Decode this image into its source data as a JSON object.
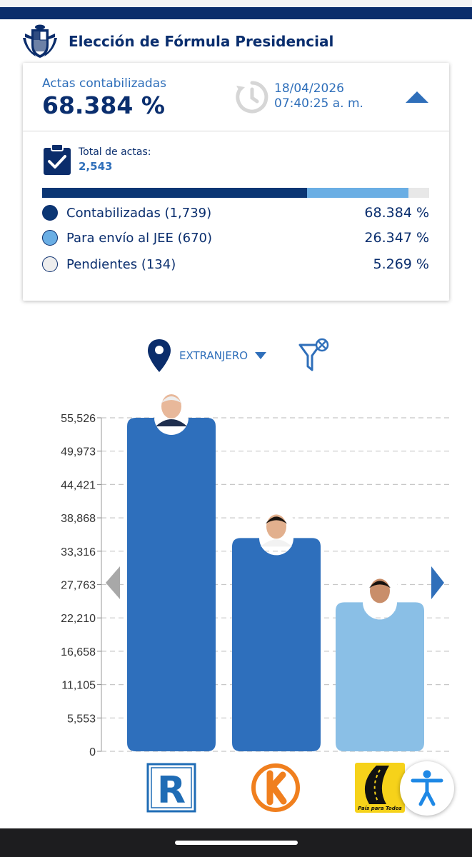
{
  "header": {
    "title": "Elección de Fórmula Presidencial",
    "crest_icon": "peru-coat-of-arms-icon"
  },
  "summary": {
    "actas_label": "Actas contabilizadas",
    "actas_pct": "68.384 %",
    "date": "18/04/2026",
    "time": "07:40:25 a. m.",
    "total_label": "Total de actas:",
    "total_value": "2,543",
    "progress_fractions": [
      0.68384,
      0.26347,
      0.05269
    ],
    "colors": {
      "contabilizadas": "#0b3674",
      "jee": "#6aaee4",
      "pendientes": "#e8e8e8",
      "accent": "#2f6fba"
    },
    "legend": [
      {
        "label": "Contabilizadas (1,739)",
        "pct": "68.384 %",
        "color": "#0b3674"
      },
      {
        "label": "Para envío al JEE (670)",
        "pct": "26.347 %",
        "color": "#6aaee4"
      },
      {
        "label": "Pendientes (134)",
        "pct": "5.269 %",
        "color": "#eeeeee"
      }
    ]
  },
  "filter": {
    "region": "EXTRANJERO"
  },
  "chart_data": {
    "type": "bar",
    "categories": [
      "R",
      "K",
      "País para Todos"
    ],
    "values": [
      55526,
      35500,
      24800
    ],
    "ylim": [
      0,
      55526
    ],
    "yticks": [
      "55,526",
      "49,973",
      "44,421",
      "38,868",
      "33,316",
      "27,763",
      "22,210",
      "16,658",
      "11,105",
      "5,553",
      "0"
    ],
    "colors": [
      "#2e6fbc",
      "#2e6fbc",
      "#8abfe6"
    ],
    "grid": true
  },
  "logos": {
    "party3_caption": "País para Todos",
    "party1_letter": "R"
  }
}
